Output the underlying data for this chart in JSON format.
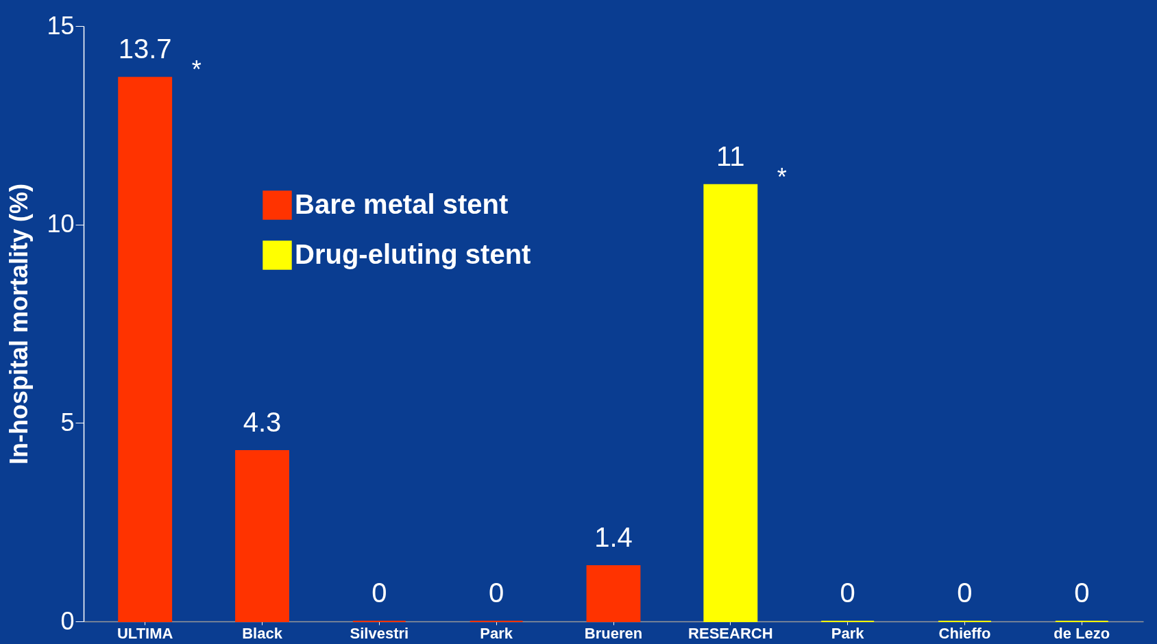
{
  "chart_data": {
    "type": "bar",
    "ylabel": "In-hospital mortality (%)",
    "categories": [
      "ULTIMA",
      "Black",
      "Silvestri",
      "Park",
      "Brueren",
      "RESEARCH",
      "Park",
      "Chieffo",
      "de Lezo"
    ],
    "series": [
      {
        "name": "Bare metal stent",
        "color": "#ff3300",
        "values": [
          13.7,
          4.3,
          0,
          0,
          1.4,
          null,
          null,
          null,
          null
        ]
      },
      {
        "name": "Drug-eluting stent",
        "color": "#ffff00",
        "values": [
          null,
          null,
          null,
          null,
          null,
          11,
          0,
          0,
          0
        ]
      }
    ],
    "ylim": [
      0,
      15
    ],
    "yticks": [
      0,
      5,
      10,
      15
    ],
    "grid": false,
    "legend": "top left",
    "data_labels": true,
    "annotations": [
      {
        "text": "*",
        "x": "ULTIMA",
        "y": 13.7
      },
      {
        "text": "*",
        "x": "RESEARCH",
        "y": 11
      }
    ]
  }
}
